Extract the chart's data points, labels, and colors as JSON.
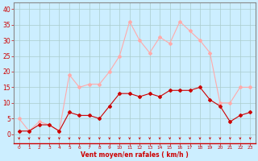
{
  "x": [
    0,
    1,
    2,
    3,
    4,
    5,
    6,
    7,
    8,
    9,
    10,
    11,
    12,
    13,
    14,
    15,
    16,
    17,
    18,
    19,
    20,
    21,
    22,
    23
  ],
  "wind_mean": [
    1,
    1,
    3,
    3,
    1,
    7,
    6,
    6,
    5,
    9,
    13,
    13,
    12,
    13,
    12,
    14,
    14,
    14,
    15,
    11,
    9,
    4,
    6,
    7
  ],
  "wind_gust": [
    5,
    1,
    4,
    3,
    1,
    19,
    15,
    16,
    16,
    20,
    25,
    36,
    30,
    26,
    31,
    29,
    36,
    33,
    30,
    26,
    10,
    10,
    15,
    15
  ],
  "mean_color": "#cc0000",
  "gust_color": "#ffaaaa",
  "bg_color": "#cceeff",
  "grid_color": "#aacccc",
  "xlabel": "Vent moyen/en rafales ( km/h )",
  "xlabel_color": "#cc0000",
  "tick_color": "#cc0000",
  "yticks": [
    0,
    5,
    10,
    15,
    20,
    25,
    30,
    35,
    40
  ],
  "ylim": [
    -3,
    42
  ],
  "xlim": [
    -0.5,
    23.5
  ]
}
